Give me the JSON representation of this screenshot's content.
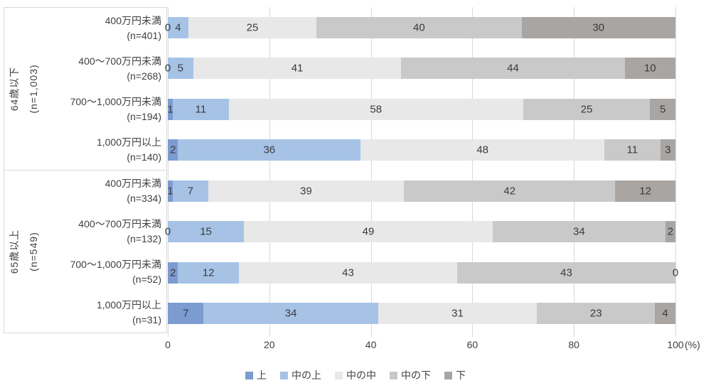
{
  "chart_data": {
    "type": "bar",
    "variant": "horizontal-stacked-100",
    "unit": "%",
    "xlim": [
      0,
      100
    ],
    "x_ticks": [
      "0",
      "20",
      "40",
      "60",
      "80",
      "100"
    ],
    "x_unit_label": "(%)",
    "grid": "vertical-on",
    "legend_position": "bottom-center",
    "legend": [
      {
        "label": "上",
        "color": "#7c9bd1"
      },
      {
        "label": "中の上",
        "color": "#a6c3e6"
      },
      {
        "label": "中の中",
        "color": "#e8e8e8"
      },
      {
        "label": "中の下",
        "color": "#c9c9c9"
      },
      {
        "label": "下",
        "color": "#a8a5a3"
      }
    ],
    "groups": [
      {
        "label": "64歳以下",
        "n_label": "(n=1,003)",
        "rows": [
          {
            "label": "400万円未満",
            "n": "(n=401)",
            "values": [
              0,
              4,
              25,
              40,
              30
            ]
          },
          {
            "label": "400〜700万円未満",
            "n": "(n=268)",
            "values": [
              0,
              5,
              41,
              44,
              10
            ]
          },
          {
            "label": "700〜1,000万円未満",
            "n": "(n=194)",
            "values": [
              1,
              11,
              58,
              25,
              5
            ]
          },
          {
            "label": "1,000万円以上",
            "n": "(n=140)",
            "values": [
              2,
              36,
              48,
              11,
              3
            ]
          }
        ]
      },
      {
        "label": "65歳以上",
        "n_label": "(n=549)",
        "rows": [
          {
            "label": "400万円未満",
            "n": "(n=334)",
            "values": [
              1,
              7,
              39,
              42,
              12
            ]
          },
          {
            "label": "400〜700万円未満",
            "n": "(n=132)",
            "values": [
              0,
              15,
              49,
              34,
              2
            ]
          },
          {
            "label": "700〜1,000万円未満",
            "n": "(n=52)",
            "values": [
              2,
              12,
              43,
              43,
              0
            ]
          },
          {
            "label": "1,000万円以上",
            "n": "(n=31)",
            "values": [
              7,
              34,
              31,
              23,
              4
            ]
          }
        ]
      }
    ]
  }
}
